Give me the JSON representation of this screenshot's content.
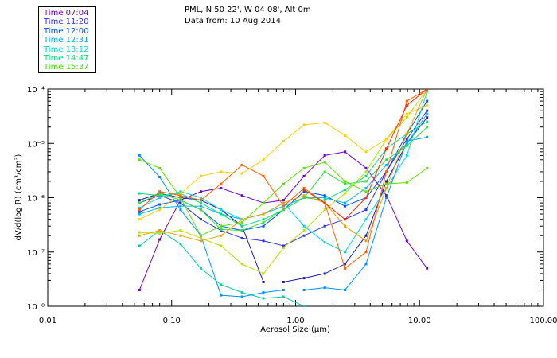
{
  "header": {
    "line1": "PML, N 50 22', W 04 08', Alt 0m",
    "line2": "Data from: 10 Aug 2014"
  },
  "legend": [
    {
      "label": "Time 07:04",
      "color": "#7000d0"
    },
    {
      "label": "Time 11:20",
      "color": "#3030e0"
    },
    {
      "label": "Time 12:00",
      "color": "#0050f0"
    },
    {
      "label": "Time 12:31",
      "color": "#00a8ff"
    },
    {
      "label": "Time 13:12",
      "color": "#00d8d8"
    },
    {
      "label": "Time 14:47",
      "color": "#00e080"
    },
    {
      "label": "Time 15:37",
      "color": "#40e000"
    }
  ],
  "chart_data": {
    "type": "line",
    "xlabel": "Aerosol Size (μm)",
    "ylabel": "dV/d(log R) (cm³/cm³)",
    "x_scale": "log",
    "y_scale": "log",
    "xlim": [
      0.01,
      100
    ],
    "ylim": [
      1e-08,
      0.0001
    ],
    "x_ticks": [
      "0.01",
      "0.10",
      "1.00",
      "10.00",
      "100.00"
    ],
    "y_ticks": [
      "10⁻⁸",
      "10⁻⁷",
      "10⁻⁶",
      "10⁻⁵",
      "10⁻⁴"
    ],
    "grid": false,
    "legend_position": "top-left",
    "x": [
      0.055,
      0.08,
      0.118,
      0.172,
      0.25,
      0.37,
      0.55,
      0.8,
      1.17,
      1.72,
      2.5,
      3.7,
      5.4,
      7.9,
      11.5
    ],
    "series": [
      {
        "color": "#7000d0",
        "values": [
          2e-08,
          1.7e-07,
          9e-07,
          1.3e-06,
          1.5e-06,
          1.1e-06,
          8e-07,
          9e-07,
          2.5e-06,
          6e-06,
          7e-06,
          3.5e-06,
          1.1e-06,
          1.6e-07,
          5e-08
        ]
      },
      {
        "color": "#3030e0",
        "values": [
          8e-07,
          1.1e-06,
          8e-07,
          4e-07,
          2.5e-07,
          1.8e-07,
          1.6e-07,
          1.3e-07,
          2e-07,
          3e-07,
          4e-07,
          6e-07,
          3e-06,
          1.2e-05,
          4e-05
        ]
      },
      {
        "color": "#1a1ab0",
        "values": [
          9e-07,
          1.2e-06,
          1e-06,
          9e-07,
          6e-07,
          3e-07,
          2.8e-08,
          2.8e-08,
          3.3e-08,
          4e-08,
          6e-08,
          2e-07,
          2e-06,
          1e-05,
          3e-05
        ]
      },
      {
        "color": "#0050f0",
        "values": [
          5.5e-07,
          7.5e-07,
          9e-07,
          6e-07,
          3e-07,
          2.5e-07,
          3e-07,
          6e-07,
          1.3e-06,
          1.1e-06,
          7e-07,
          1e-06,
          3e-06,
          1.5e-05,
          6e-05
        ]
      },
      {
        "color": "#0090ff",
        "values": [
          6e-06,
          2.4e-06,
          6e-07,
          2e-07,
          1.6e-08,
          1.5e-08,
          1.8e-08,
          2e-08,
          2e-08,
          2.2e-08,
          2e-08,
          6e-08,
          1e-06,
          1.1e-05,
          1.3e-05
        ]
      },
      {
        "color": "#00b8ff",
        "values": [
          5e-07,
          6.5e-07,
          7e-07,
          7e-07,
          5e-07,
          4e-07,
          5e-07,
          7e-07,
          1e-06,
          1e-06,
          8e-07,
          1.5e-06,
          4e-06,
          1e-05,
          3.5e-05
        ]
      },
      {
        "color": "#00d8e0",
        "values": [
          6.5e-07,
          1e-06,
          1.3e-06,
          1e-06,
          6e-07,
          4e-07,
          5e-07,
          8e-07,
          3e-07,
          1.5e-07,
          1e-07,
          4e-07,
          1.5e-06,
          6e-06,
          9e-05
        ]
      },
      {
        "color": "#00d0b0",
        "values": [
          1.3e-07,
          2.5e-07,
          1.4e-07,
          5e-08,
          2.5e-08,
          1.8e-08,
          1.4e-08,
          1.5e-08,
          1e-08,
          null,
          null,
          null,
          null,
          null,
          null
        ]
      },
      {
        "color": "#00e080",
        "values": [
          1.2e-06,
          1.1e-06,
          1.2e-06,
          8e-07,
          5e-07,
          3e-07,
          4e-07,
          6e-07,
          1e-06,
          9e-07,
          1.4e-06,
          2.5e-06,
          8e-06,
          1.5e-05,
          2.5e-05
        ]
      },
      {
        "color": "#30e040",
        "values": [
          8e-07,
          1.2e-06,
          9e-07,
          6e-07,
          2.6e-07,
          2.5e-07,
          3.5e-07,
          6e-07,
          1e-06,
          3e-06,
          1.8e-06,
          2e-06,
          5e-06,
          9e-06,
          2e-05
        ]
      },
      {
        "color": "#60e000",
        "values": [
          5e-06,
          3.5e-06,
          1e-06,
          2e-07,
          3e-07,
          3.5e-07,
          8e-07,
          1.8e-06,
          3.5e-06,
          4.5e-06,
          2e-06,
          1.3e-06,
          1.8e-06,
          1.9e-06,
          3.5e-06
        ]
      },
      {
        "color": "#b8e000",
        "values": [
          2.3e-07,
          2.2e-07,
          2.5e-07,
          1.8e-07,
          1.3e-07,
          6e-08,
          4e-08,
          1.2e-07,
          2.5e-07,
          6e-07,
          1.2e-06,
          3e-06,
          1.2e-05,
          3e-05,
          0.0001
        ]
      },
      {
        "color": "#ffd000",
        "values": [
          4e-07,
          6e-07,
          1.2e-06,
          2.5e-06,
          3e-06,
          2.8e-06,
          5e-06,
          1.1e-05,
          2.2e-05,
          2.4e-05,
          1.4e-05,
          7e-06,
          1.2e-05,
          3.5e-05,
          5e-05
        ]
      },
      {
        "color": "#f0a000",
        "values": [
          2e-07,
          2.5e-07,
          2e-07,
          1.6e-07,
          2e-07,
          4e-07,
          5e-07,
          8e-07,
          1.1e-06,
          8e-07,
          3e-07,
          1.6e-07,
          1.5e-06,
          1.5e-05,
          0.0001
        ]
      },
      {
        "color": "#ff6000",
        "values": [
          6e-07,
          1.3e-06,
          1.1e-06,
          9e-07,
          1.8e-06,
          4e-06,
          2.5e-06,
          7e-07,
          1.5e-06,
          8e-07,
          5e-08,
          1e-07,
          3e-06,
          6e-05,
          0.0001
        ]
      },
      {
        "color": "#ff2800",
        "values": [
          null,
          null,
          null,
          null,
          null,
          null,
          null,
          null,
          1.4e-06,
          8e-07,
          4e-07,
          1e-06,
          8e-06,
          5e-05,
          0.0001
        ]
      }
    ]
  }
}
